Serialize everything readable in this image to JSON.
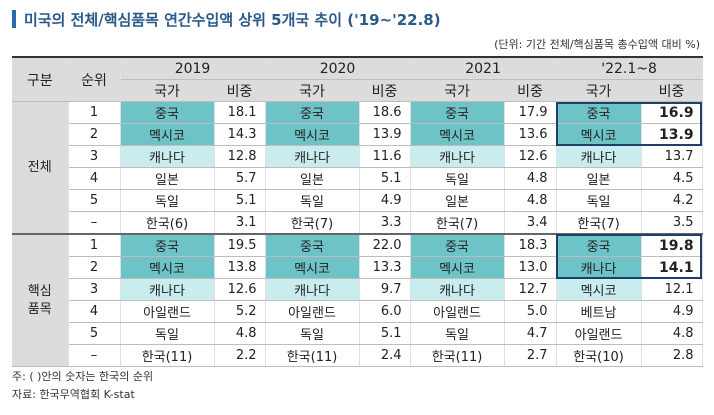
{
  "title": "미국의 전체/핵심품목 연간수입액 상위 5개국 추이 ('19~'22.8)",
  "unit": "(단위: 기간 전체/핵심품목 총수입액 대비 %)",
  "headers": {
    "group": "구분",
    "rank": "순위",
    "country": "국가",
    "share": "비중",
    "years": [
      "2019",
      "2020",
      "2021",
      "'22.1~8"
    ]
  },
  "groups": [
    {
      "name": "전체",
      "rows": [
        {
          "rank": "1",
          "cells": [
            [
              "중국",
              "18.1"
            ],
            [
              "중국",
              "18.6"
            ],
            [
              "중국",
              "17.9"
            ],
            [
              "중국",
              "16.9"
            ]
          ]
        },
        {
          "rank": "2",
          "cells": [
            [
              "멕시코",
              "14.3"
            ],
            [
              "멕시코",
              "13.9"
            ],
            [
              "멕시코",
              "13.6"
            ],
            [
              "멕시코",
              "13.9"
            ]
          ]
        },
        {
          "rank": "3",
          "cells": [
            [
              "캐나다",
              "12.8"
            ],
            [
              "캐나다",
              "11.6"
            ],
            [
              "캐나다",
              "12.6"
            ],
            [
              "캐나다",
              "13.7"
            ]
          ]
        },
        {
          "rank": "4",
          "cells": [
            [
              "일본",
              "5.7"
            ],
            [
              "일본",
              "5.1"
            ],
            [
              "독일",
              "4.8"
            ],
            [
              "일본",
              "4.5"
            ]
          ]
        },
        {
          "rank": "5",
          "cells": [
            [
              "독일",
              "5.1"
            ],
            [
              "독일",
              "4.9"
            ],
            [
              "일본",
              "4.8"
            ],
            [
              "독일",
              "4.2"
            ]
          ]
        },
        {
          "rank": "–",
          "cells": [
            [
              "한국(6)",
              "3.1"
            ],
            [
              "한국(7)",
              "3.3"
            ],
            [
              "한국(7)",
              "3.4"
            ],
            [
              "한국(7)",
              "3.5"
            ]
          ]
        }
      ]
    },
    {
      "name": "핵심\n품목",
      "rows": [
        {
          "rank": "1",
          "cells": [
            [
              "중국",
              "19.5"
            ],
            [
              "중국",
              "22.0"
            ],
            [
              "중국",
              "18.3"
            ],
            [
              "중국",
              "19.8"
            ]
          ]
        },
        {
          "rank": "2",
          "cells": [
            [
              "멕시코",
              "13.8"
            ],
            [
              "멕시코",
              "13.3"
            ],
            [
              "멕시코",
              "13.0"
            ],
            [
              "캐나다",
              "14.1"
            ]
          ]
        },
        {
          "rank": "3",
          "cells": [
            [
              "캐나다",
              "12.6"
            ],
            [
              "캐나다",
              "9.7"
            ],
            [
              "캐나다",
              "12.7"
            ],
            [
              "멕시코",
              "12.1"
            ]
          ]
        },
        {
          "rank": "4",
          "cells": [
            [
              "아일랜드",
              "5.2"
            ],
            [
              "아일랜드",
              "6.0"
            ],
            [
              "아일랜드",
              "5.0"
            ],
            [
              "베트남",
              "4.9"
            ]
          ]
        },
        {
          "rank": "5",
          "cells": [
            [
              "독일",
              "4.8"
            ],
            [
              "독일",
              "5.1"
            ],
            [
              "독일",
              "4.7"
            ],
            [
              "아일랜드",
              "4.8"
            ]
          ]
        },
        {
          "rank": "–",
          "cells": [
            [
              "한국(11)",
              "2.2"
            ],
            [
              "한국(11)",
              "2.4"
            ],
            [
              "한국(11)",
              "2.7"
            ],
            [
              "한국(10)",
              "2.8"
            ]
          ]
        }
      ]
    }
  ],
  "notes": [
    "주: ( )안의 숫자는 한국의 순위",
    "자료: 한국무역협회 K-stat"
  ],
  "colors": {
    "dark": "#6ec3c7",
    "light": "#c9ecee",
    "header": "#dcdcdc",
    "highlight_border": "#1f3f6b",
    "title": "#2a5a8a"
  }
}
